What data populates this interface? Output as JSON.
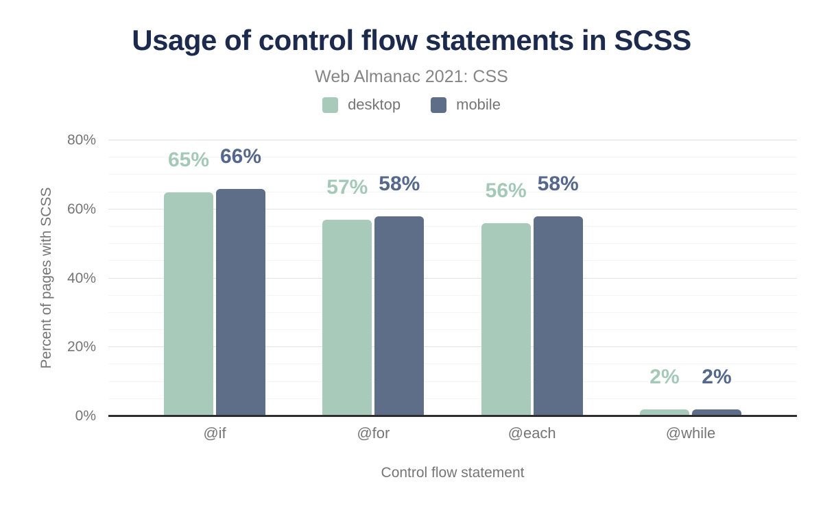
{
  "chart_data": {
    "type": "bar",
    "title": "Usage of control flow statements in SCSS",
    "subtitle": "Web Almanac 2021: CSS",
    "xlabel": "Control flow statement",
    "ylabel": "Percent of pages with SCSS",
    "unit": "%",
    "categories": [
      "@if",
      "@for",
      "@each",
      "@while"
    ],
    "series": [
      {
        "name": "desktop",
        "color": "#a8cabb",
        "label_color": "#a5c9b8",
        "values": [
          65,
          57,
          56,
          2
        ]
      },
      {
        "name": "mobile",
        "color": "#5f6e88",
        "label_color": "#54688c",
        "values": [
          66,
          58,
          58,
          2
        ]
      }
    ],
    "ylim": [
      0,
      80
    ],
    "yticks": [
      {
        "label": "0%",
        "value": 0
      },
      {
        "label": "20%",
        "value": 20
      },
      {
        "label": "40%",
        "value": 40
      },
      {
        "label": "60%",
        "value": 60
      },
      {
        "label": "80%",
        "value": 80
      }
    ],
    "grid": "horizontal major every 20%, minor every 5%",
    "legend_position": "top",
    "colors": {
      "title": "#1c2b4d",
      "muted_text": "#757575",
      "subtitle_text": "#858585",
      "grid_major": "#e3e3e3",
      "grid_minor": "#f4f4f4",
      "axis_line": "#2d2d2d",
      "background": "#ffffff"
    }
  }
}
